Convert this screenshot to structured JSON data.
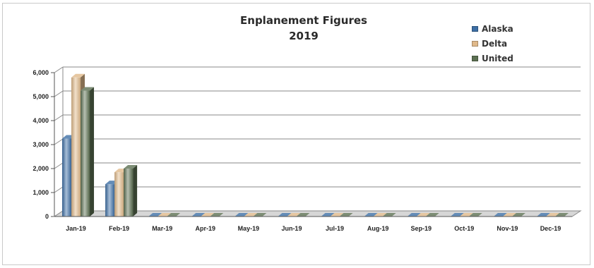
{
  "chart_data": {
    "type": "bar",
    "title": "Enplanement Figures",
    "subtitle": "2019",
    "xlabel": "",
    "ylabel": "",
    "categories": [
      "Jan-19",
      "Feb-19",
      "Mar-19",
      "Apr-19",
      "May-19",
      "Jun-19",
      "Jul-19",
      "Aug-19",
      "Sep-19",
      "Oct-19",
      "Nov-19",
      "Dec-19"
    ],
    "series": [
      {
        "name": "Alaska",
        "color": "#3d6fa5",
        "values": [
          3250,
          1350,
          0,
          0,
          0,
          0,
          0,
          0,
          0,
          0,
          0,
          0
        ]
      },
      {
        "name": "Delta",
        "color": "#e0b98a",
        "values": [
          5800,
          1850,
          0,
          0,
          0,
          0,
          0,
          0,
          0,
          0,
          0,
          0
        ]
      },
      {
        "name": "United",
        "color": "#5c7052",
        "values": [
          5250,
          2000,
          0,
          0,
          0,
          0,
          0,
          0,
          0,
          0,
          0,
          0
        ]
      }
    ],
    "ylim": [
      0,
      6000
    ],
    "yticks": [
      "0",
      "1,000",
      "2,000",
      "3,000",
      "4,000",
      "5,000",
      "6,000"
    ],
    "grid": true,
    "legend_position": "top-right",
    "style": "3d-column"
  }
}
